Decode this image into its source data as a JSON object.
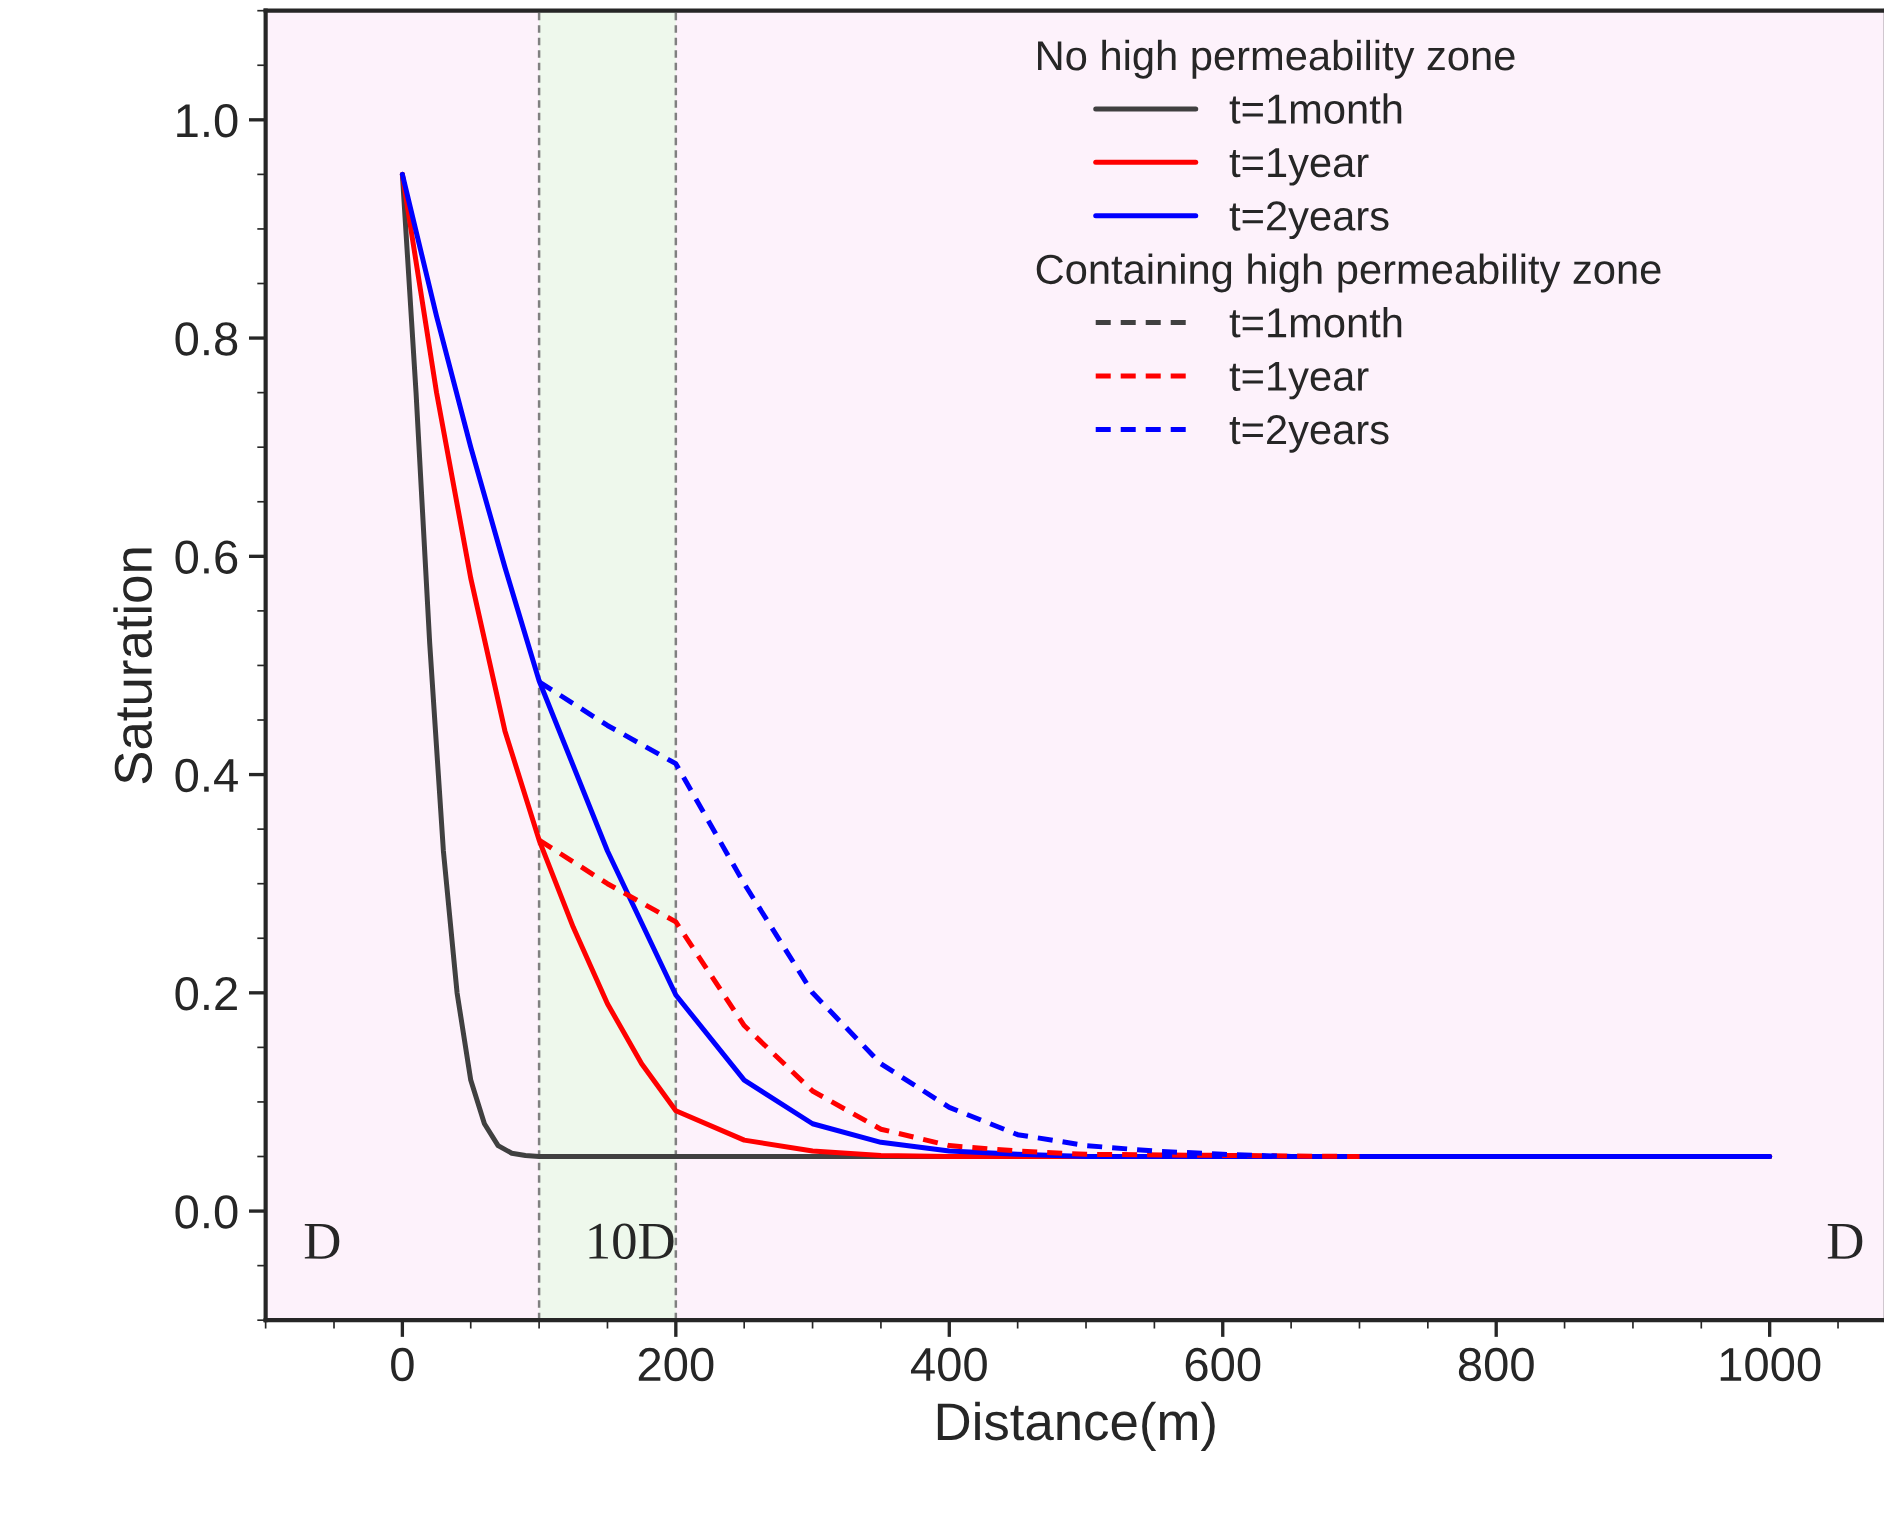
{
  "chart_data": {
    "type": "line",
    "xlabel": "Distance(m)",
    "ylabel": "Saturation",
    "xlim": [
      -100,
      1085
    ],
    "ylim": [
      -0.1,
      1.1
    ],
    "xticks": [
      0,
      200,
      400,
      600,
      800,
      1000
    ],
    "yticks": [
      {
        "value": 0,
        "label": "0.0"
      },
      0.2,
      0.4,
      0.6,
      0.8,
      {
        "value": 1,
        "label": "1.0"
      }
    ],
    "grid": false,
    "legend": "top right",
    "marker": "none",
    "annotations": [
      "No high permeability zone",
      "Containing high permeability zone",
      "D",
      "10D",
      "D"
    ],
    "bands": [
      {
        "axis": "x",
        "from": 100,
        "to": 200,
        "color": "#eef8ec"
      }
    ],
    "ref_lines": [
      {
        "axis": "x",
        "value": 100,
        "color": "#808080",
        "line_style": "dashed"
      },
      {
        "axis": "x",
        "value": 200,
        "color": "#808080",
        "line_style": "dashed"
      }
    ],
    "series": [
      {
        "name": "t=1month",
        "color": "#404040",
        "line_style": "solid",
        "x": [
          0,
          10,
          20,
          30,
          40,
          50,
          60,
          70,
          80,
          90,
          100,
          1000
        ],
        "values": [
          0.95,
          0.75,
          0.52,
          0.33,
          0.2,
          0.12,
          0.08,
          0.06,
          0.053,
          0.051,
          0.05,
          0.05
        ]
      },
      {
        "name": "t=1year",
        "color": "#ff0000",
        "line_style": "solid",
        "x": [
          0,
          25,
          50,
          75,
          100,
          125,
          150,
          175,
          200,
          250,
          300,
          350,
          400,
          1000
        ],
        "values": [
          0.95,
          0.75,
          0.58,
          0.44,
          0.34,
          0.26,
          0.19,
          0.135,
          0.092,
          0.065,
          0.055,
          0.051,
          0.05,
          0.05
        ]
      },
      {
        "name": "t=2years",
        "color": "#0000ff",
        "line_style": "solid",
        "x": [
          0,
          25,
          50,
          75,
          100,
          150,
          200,
          250,
          300,
          350,
          400,
          450,
          500,
          1000
        ],
        "values": [
          0.95,
          0.82,
          0.7,
          0.59,
          0.486,
          0.33,
          0.198,
          0.12,
          0.08,
          0.063,
          0.055,
          0.052,
          0.05,
          0.05
        ]
      },
      {
        "name": "t=1month",
        "color": "#404040",
        "line_style": "dashed"
      },
      {
        "name": "t=1year",
        "color": "#ff0000",
        "line_style": "dashed",
        "x": [
          100,
          150,
          200,
          250,
          300,
          350,
          400,
          450,
          500,
          700
        ],
        "values": [
          0.34,
          0.3,
          0.265,
          0.17,
          0.11,
          0.075,
          0.06,
          0.055,
          0.052,
          0.05
        ]
      },
      {
        "name": "t=2years",
        "color": "#0000ff",
        "line_style": "dashed",
        "x": [
          100,
          150,
          200,
          250,
          300,
          350,
          400,
          450,
          500,
          550,
          600,
          650
        ],
        "values": [
          0.485,
          0.445,
          0.41,
          0.3,
          0.2,
          0.135,
          0.095,
          0.07,
          0.06,
          0.055,
          0.052,
          0.05
        ]
      }
    ]
  }
}
